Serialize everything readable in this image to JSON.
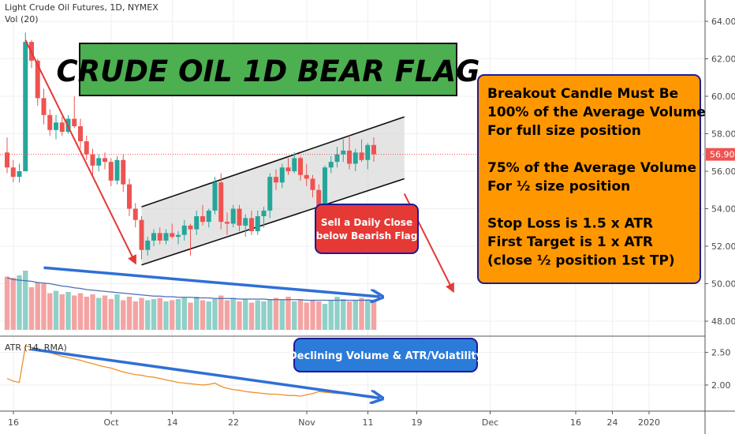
{
  "header": {
    "symbol_line": "Light Crude Oil Futures, 1D, NYMEX",
    "volume_label": "Vol (20)",
    "atr_label": "ATR (14, RMA)"
  },
  "colors": {
    "up": "#26a69a",
    "down": "#ef5350",
    "vol_up": "#8fd0c8",
    "vol_down": "#f4a3a3",
    "price_line": "#ef5350",
    "atr_line": "#f0902a",
    "vol_ma": "#4a6fb3",
    "blue_arrow": "#2f6fd6",
    "red_arrow": "#e53935",
    "channel_fill": "#d9d9d9",
    "green_box": "#4caf50",
    "orange_box": "#ff9800",
    "red_box": "#e53935",
    "blue_box": "#2b7bd9",
    "box_border": "#1b1b9c"
  },
  "annotations": {
    "title": "CRUDE OIL 1D BEAR FLAG",
    "sell_line1": "Sell a Daily Close",
    "sell_line2": "below Bearish Flag",
    "declining": "Declining Volume & ATR/Volatility",
    "rules": [
      "Breakout Candle Must Be",
      "100% of the Average Volume",
      "For full size position",
      "",
      "75% of the Average Volume",
      "For ½ size position",
      "",
      "Stop Loss is 1.5 x ATR",
      "First Target is 1 x ATR",
      "(close ½ position 1st TP)"
    ]
  },
  "chart_data": {
    "type": "candlestick",
    "title": "Light Crude Oil Futures, 1D, NYMEX",
    "price_axis": {
      "ticks": [
        "64.00",
        "62.00",
        "60.00",
        "58.00",
        "56.00",
        "54.00",
        "52.00",
        "50.00",
        "48.00"
      ],
      "tick_values": [
        64,
        62,
        60,
        58,
        56,
        54,
        52,
        50,
        48
      ],
      "range": [
        47.2,
        64.8
      ],
      "last_price": "56.90"
    },
    "atr_axis": {
      "ticks": [
        "2.50",
        "2.00"
      ],
      "tick_values": [
        2.5,
        2.0
      ],
      "range": [
        1.6,
        2.75
      ]
    },
    "x_axis": {
      "labels": [
        "16",
        "Oct",
        "14",
        "22",
        "Nov",
        "11",
        "19",
        "Dec",
        "16",
        "24",
        "2020"
      ],
      "label_index": [
        0,
        16,
        26,
        36,
        48,
        58,
        66,
        78,
        92,
        98,
        104
      ],
      "bar_count": 112
    },
    "candles": [
      {
        "o": 57.0,
        "h": 57.8,
        "l": 55.9,
        "c": 56.2
      },
      {
        "o": 56.2,
        "h": 56.6,
        "l": 55.4,
        "c": 55.7
      },
      {
        "o": 55.7,
        "h": 56.4,
        "l": 55.4,
        "c": 56.0
      },
      {
        "o": 56.0,
        "h": 63.4,
        "l": 56.0,
        "c": 62.9
      },
      {
        "o": 62.9,
        "h": 63.0,
        "l": 61.5,
        "c": 61.9
      },
      {
        "o": 61.9,
        "h": 62.0,
        "l": 59.5,
        "c": 59.9
      },
      {
        "o": 59.9,
        "h": 60.4,
        "l": 58.5,
        "c": 59.0
      },
      {
        "o": 59.0,
        "h": 59.3,
        "l": 57.9,
        "c": 58.2
      },
      {
        "o": 58.2,
        "h": 59.0,
        "l": 57.7,
        "c": 58.6
      },
      {
        "o": 58.6,
        "h": 58.9,
        "l": 57.9,
        "c": 58.1
      },
      {
        "o": 58.1,
        "h": 59.0,
        "l": 58.0,
        "c": 58.8
      },
      {
        "o": 58.8,
        "h": 60.0,
        "l": 58.3,
        "c": 58.4
      },
      {
        "o": 58.4,
        "h": 58.8,
        "l": 57.2,
        "c": 57.6
      },
      {
        "o": 57.6,
        "h": 57.9,
        "l": 56.6,
        "c": 56.9
      },
      {
        "o": 56.9,
        "h": 57.2,
        "l": 55.8,
        "c": 56.3
      },
      {
        "o": 56.3,
        "h": 56.9,
        "l": 56.0,
        "c": 56.7
      },
      {
        "o": 56.7,
        "h": 57.0,
        "l": 56.1,
        "c": 56.5
      },
      {
        "o": 56.5,
        "h": 56.7,
        "l": 55.2,
        "c": 55.5
      },
      {
        "o": 55.5,
        "h": 56.8,
        "l": 55.3,
        "c": 56.6
      },
      {
        "o": 56.6,
        "h": 56.9,
        "l": 54.9,
        "c": 55.3
      },
      {
        "o": 55.3,
        "h": 55.6,
        "l": 53.6,
        "c": 54.0
      },
      {
        "o": 54.0,
        "h": 54.3,
        "l": 53.0,
        "c": 53.4
      },
      {
        "o": 53.4,
        "h": 53.6,
        "l": 51.3,
        "c": 51.8
      },
      {
        "o": 51.8,
        "h": 52.5,
        "l": 51.5,
        "c": 52.3
      },
      {
        "o": 52.3,
        "h": 52.9,
        "l": 52.0,
        "c": 52.7
      },
      {
        "o": 52.7,
        "h": 53.0,
        "l": 52.1,
        "c": 52.3
      },
      {
        "o": 52.3,
        "h": 52.9,
        "l": 52.1,
        "c": 52.7
      },
      {
        "o": 52.7,
        "h": 53.2,
        "l": 52.4,
        "c": 52.5
      },
      {
        "o": 52.5,
        "h": 52.8,
        "l": 52.1,
        "c": 52.6
      },
      {
        "o": 52.6,
        "h": 53.4,
        "l": 52.3,
        "c": 53.1
      },
      {
        "o": 53.1,
        "h": 53.2,
        "l": 51.5,
        "c": 52.9
      },
      {
        "o": 52.9,
        "h": 53.9,
        "l": 52.6,
        "c": 53.6
      },
      {
        "o": 53.6,
        "h": 54.2,
        "l": 53.1,
        "c": 53.3
      },
      {
        "o": 53.3,
        "h": 54.0,
        "l": 53.0,
        "c": 53.9
      },
      {
        "o": 53.9,
        "h": 55.7,
        "l": 53.7,
        "c": 55.4
      },
      {
        "o": 55.4,
        "h": 55.9,
        "l": 52.9,
        "c": 53.3
      },
      {
        "o": 53.3,
        "h": 53.8,
        "l": 52.6,
        "c": 53.2
      },
      {
        "o": 53.2,
        "h": 54.2,
        "l": 53.0,
        "c": 54.0
      },
      {
        "o": 54.0,
        "h": 54.2,
        "l": 52.8,
        "c": 53.1
      },
      {
        "o": 53.1,
        "h": 53.7,
        "l": 52.5,
        "c": 53.5
      },
      {
        "o": 53.5,
        "h": 53.9,
        "l": 52.6,
        "c": 52.8
      },
      {
        "o": 52.8,
        "h": 53.9,
        "l": 52.6,
        "c": 53.6
      },
      {
        "o": 53.6,
        "h": 54.1,
        "l": 53.0,
        "c": 53.9
      },
      {
        "o": 53.9,
        "h": 55.9,
        "l": 53.5,
        "c": 55.7
      },
      {
        "o": 55.7,
        "h": 56.1,
        "l": 55.0,
        "c": 55.4
      },
      {
        "o": 55.4,
        "h": 56.4,
        "l": 55.1,
        "c": 56.2
      },
      {
        "o": 56.2,
        "h": 56.7,
        "l": 55.8,
        "c": 56.0
      },
      {
        "o": 56.0,
        "h": 57.0,
        "l": 55.9,
        "c": 56.7
      },
      {
        "o": 56.7,
        "h": 56.8,
        "l": 55.5,
        "c": 55.8
      },
      {
        "o": 55.8,
        "h": 56.4,
        "l": 55.2,
        "c": 55.6
      },
      {
        "o": 55.6,
        "h": 55.8,
        "l": 54.6,
        "c": 55.0
      },
      {
        "o": 55.0,
        "h": 55.3,
        "l": 53.8,
        "c": 54.1
      },
      {
        "o": 54.1,
        "h": 56.3,
        "l": 54.0,
        "c": 56.2
      },
      {
        "o": 56.2,
        "h": 56.8,
        "l": 55.9,
        "c": 56.5
      },
      {
        "o": 56.5,
        "h": 57.3,
        "l": 56.2,
        "c": 56.9
      },
      {
        "o": 56.9,
        "h": 57.7,
        "l": 56.5,
        "c": 57.1
      },
      {
        "o": 57.1,
        "h": 57.9,
        "l": 56.1,
        "c": 56.4
      },
      {
        "o": 56.4,
        "h": 57.2,
        "l": 56.0,
        "c": 57.0
      },
      {
        "o": 57.0,
        "h": 57.7,
        "l": 56.5,
        "c": 56.6
      },
      {
        "o": 56.6,
        "h": 57.5,
        "l": 56.1,
        "c": 57.4
      },
      {
        "o": 57.4,
        "h": 57.8,
        "l": 56.5,
        "c": 56.9
      }
    ],
    "volume": {
      "values": [
        90,
        88,
        92,
        100,
        72,
        80,
        78,
        62,
        66,
        60,
        64,
        58,
        62,
        56,
        60,
        54,
        58,
        52,
        60,
        50,
        56,
        48,
        54,
        50,
        52,
        54,
        48,
        50,
        52,
        54,
        46,
        56,
        50,
        48,
        52,
        58,
        50,
        54,
        48,
        52,
        46,
        50,
        48,
        52,
        54,
        50,
        56,
        48,
        52,
        46,
        50,
        48,
        44,
        50,
        56,
        52,
        48,
        50,
        54,
        52,
        50
      ],
      "ma": [
        88,
        85,
        84,
        83,
        82,
        80,
        79,
        78,
        76,
        74,
        73,
        71,
        70,
        68,
        67,
        66,
        65,
        64,
        63,
        62,
        61,
        60,
        59,
        58,
        57,
        57,
        56,
        56,
        55,
        55,
        55,
        54,
        54,
        54,
        53,
        53,
        53,
        53,
        52,
        52,
        52,
        52,
        52,
        51,
        51,
        51,
        51,
        51,
        51,
        50,
        50,
        50,
        50,
        50,
        50,
        50,
        50,
        50,
        50,
        50,
        50
      ],
      "range": [
        0,
        140
      ]
    },
    "atr": {
      "values": [
        2.1,
        2.06,
        2.04,
        2.6,
        2.58,
        2.56,
        2.52,
        2.5,
        2.47,
        2.44,
        2.42,
        2.4,
        2.38,
        2.35,
        2.33,
        2.3,
        2.28,
        2.26,
        2.23,
        2.2,
        2.18,
        2.16,
        2.15,
        2.13,
        2.12,
        2.1,
        2.08,
        2.06,
        2.04,
        2.03,
        2.02,
        2.01,
        2.0,
        2.01,
        2.03,
        1.98,
        1.95,
        1.93,
        1.92,
        1.9,
        1.89,
        1.88,
        1.87,
        1.86,
        1.86,
        1.85,
        1.84,
        1.84,
        1.83,
        1.85,
        1.87,
        1.9,
        1.89,
        1.88,
        1.87,
        1.87,
        1.86,
        1.85,
        1.84,
        1.84,
        1.83
      ]
    },
    "channel": {
      "upper": [
        {
          "i": 22,
          "v": 54.1
        },
        {
          "i": 65,
          "v": 58.9
        }
      ],
      "lower": [
        {
          "i": 22,
          "v": 51.0
        },
        {
          "i": 65,
          "v": 55.6
        }
      ]
    },
    "flagpole": [
      {
        "i": 3,
        "v": 63.0
      },
      {
        "i": 21,
        "v": 51.1
      }
    ],
    "target_arrow": [
      {
        "i": 65,
        "v": 54.8
      },
      {
        "i": 73,
        "v": 49.6
      }
    ],
    "volume_trend": [
      {
        "i": 6,
        "v": 105
      },
      {
        "i": 61,
        "v": 56
      }
    ],
    "atr_trend": [
      {
        "i": 4,
        "v": 2.55
      },
      {
        "i": 61,
        "v": 1.8
      }
    ]
  }
}
